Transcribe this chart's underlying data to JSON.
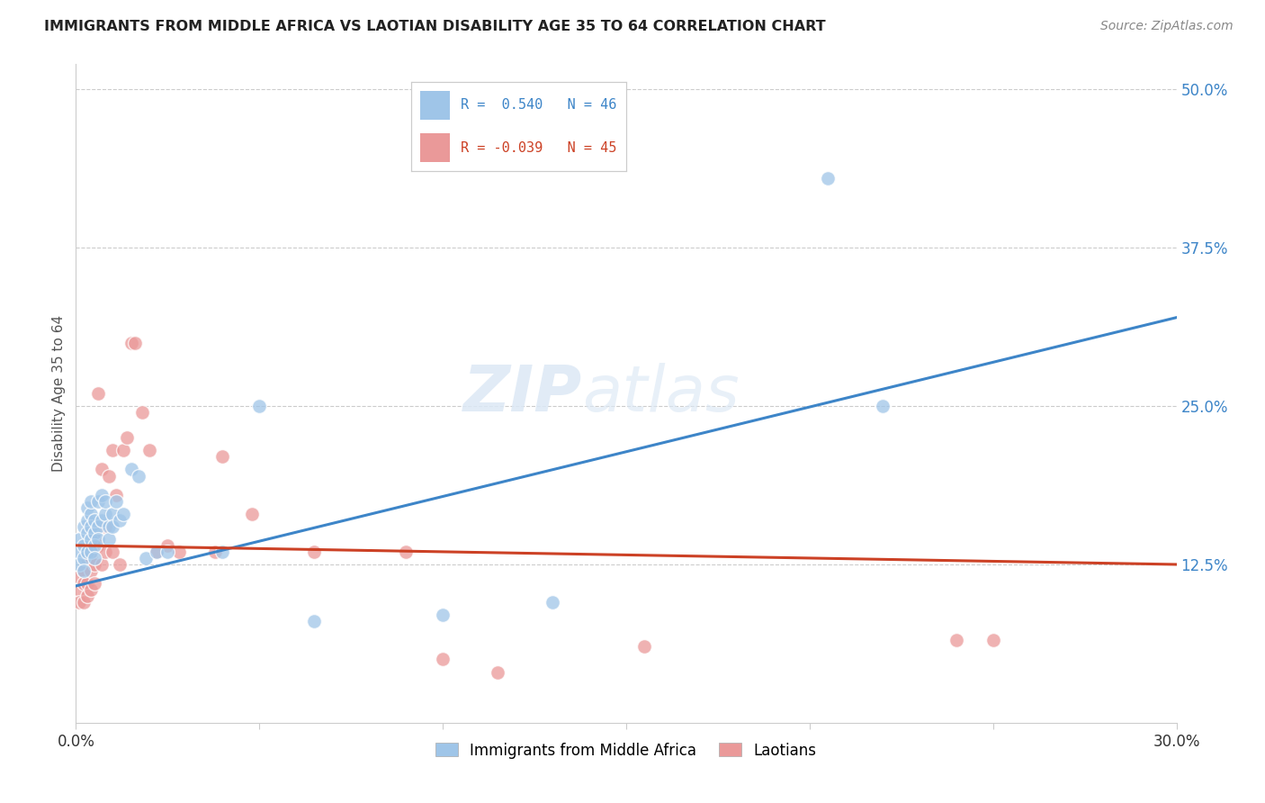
{
  "title": "IMMIGRANTS FROM MIDDLE AFRICA VS LAOTIAN DISABILITY AGE 35 TO 64 CORRELATION CHART",
  "source": "Source: ZipAtlas.com",
  "ylabel": "Disability Age 35 to 64",
  "xlim": [
    0.0,
    0.3
  ],
  "ylim": [
    0.0,
    0.52
  ],
  "yticks": [
    0.0,
    0.125,
    0.25,
    0.375,
    0.5
  ],
  "ytick_labels": [
    "",
    "12.5%",
    "25.0%",
    "37.5%",
    "50.0%"
  ],
  "xticks": [
    0.0,
    0.05,
    0.1,
    0.15,
    0.2,
    0.25,
    0.3
  ],
  "xtick_labels": [
    "0.0%",
    "",
    "",
    "",
    "",
    "",
    "30.0%"
  ],
  "color_blue": "#9fc5e8",
  "color_pink": "#ea9999",
  "line_blue": "#3d85c8",
  "line_pink": "#cc4125",
  "tick_color_blue": "#3d85c8",
  "background": "#ffffff",
  "watermark_zip": "ZIP",
  "watermark_atlas": "atlas",
  "blue_scatter_x": [
    0.001,
    0.001,
    0.001,
    0.002,
    0.002,
    0.002,
    0.002,
    0.003,
    0.003,
    0.003,
    0.003,
    0.004,
    0.004,
    0.004,
    0.004,
    0.004,
    0.005,
    0.005,
    0.005,
    0.005,
    0.006,
    0.006,
    0.006,
    0.007,
    0.007,
    0.008,
    0.008,
    0.009,
    0.009,
    0.01,
    0.01,
    0.011,
    0.012,
    0.013,
    0.015,
    0.017,
    0.019,
    0.022,
    0.025,
    0.04,
    0.05,
    0.065,
    0.1,
    0.13,
    0.205,
    0.22
  ],
  "blue_scatter_y": [
    0.135,
    0.145,
    0.125,
    0.14,
    0.13,
    0.155,
    0.12,
    0.16,
    0.135,
    0.15,
    0.17,
    0.145,
    0.165,
    0.135,
    0.155,
    0.175,
    0.15,
    0.14,
    0.13,
    0.16,
    0.175,
    0.155,
    0.145,
    0.16,
    0.18,
    0.165,
    0.175,
    0.155,
    0.145,
    0.165,
    0.155,
    0.175,
    0.16,
    0.165,
    0.2,
    0.195,
    0.13,
    0.135,
    0.135,
    0.135,
    0.25,
    0.08,
    0.085,
    0.095,
    0.43,
    0.25
  ],
  "pink_scatter_x": [
    0.001,
    0.001,
    0.001,
    0.002,
    0.002,
    0.002,
    0.003,
    0.003,
    0.003,
    0.004,
    0.004,
    0.004,
    0.005,
    0.005,
    0.005,
    0.006,
    0.006,
    0.007,
    0.007,
    0.008,
    0.008,
    0.009,
    0.01,
    0.01,
    0.011,
    0.012,
    0.013,
    0.014,
    0.015,
    0.016,
    0.018,
    0.02,
    0.022,
    0.025,
    0.028,
    0.038,
    0.04,
    0.048,
    0.065,
    0.09,
    0.1,
    0.115,
    0.155,
    0.24,
    0.25
  ],
  "pink_scatter_y": [
    0.115,
    0.105,
    0.095,
    0.12,
    0.11,
    0.095,
    0.13,
    0.11,
    0.1,
    0.13,
    0.12,
    0.105,
    0.145,
    0.125,
    0.11,
    0.26,
    0.14,
    0.2,
    0.125,
    0.155,
    0.135,
    0.195,
    0.215,
    0.135,
    0.18,
    0.125,
    0.215,
    0.225,
    0.3,
    0.3,
    0.245,
    0.215,
    0.135,
    0.14,
    0.135,
    0.135,
    0.21,
    0.165,
    0.135,
    0.135,
    0.05,
    0.04,
    0.06,
    0.065,
    0.065
  ],
  "blue_line_x": [
    0.0,
    0.3
  ],
  "blue_line_y": [
    0.108,
    0.32
  ],
  "pink_line_x": [
    0.0,
    0.3
  ],
  "pink_line_y": [
    0.14,
    0.125
  ]
}
